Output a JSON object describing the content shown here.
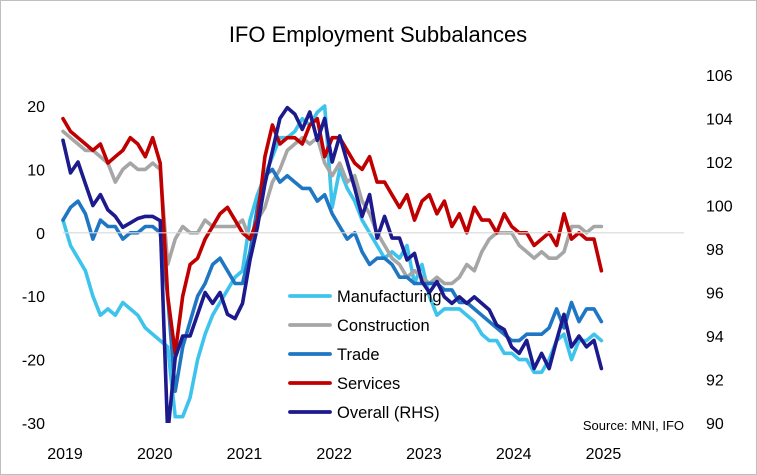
{
  "chart_data": {
    "type": "line",
    "title": "IFO Employment Subbalances",
    "source": "Source: MNI, IFO",
    "xlabel": "",
    "ylabel_left": "",
    "ylabel_right": "",
    "x_ticks": [
      "2019",
      "2020",
      "2021",
      "2022",
      "2023",
      "2024",
      "2025"
    ],
    "x_range": [
      2019.0,
      2025.92
    ],
    "ylim_left": [
      -30,
      20
    ],
    "yticks_left": [
      "-30",
      "-20",
      "-10",
      "0",
      "10",
      "20"
    ],
    "ylim_right": [
      90,
      106
    ],
    "yticks_right": [
      "90",
      "92",
      "94",
      "96",
      "98",
      "100",
      "102",
      "104",
      "106"
    ],
    "grid": false,
    "legend_position": "bottom-center",
    "series": [
      {
        "name": "Manufacturing",
        "axis": "left",
        "color": "#3ec4ec",
        "start": 2019.0,
        "values": [
          2,
          -2,
          -4,
          -6,
          -10,
          -13,
          -12,
          -13,
          -11,
          -12,
          -13,
          -15,
          -16,
          -17,
          -18,
          -29,
          -29,
          -26,
          -20,
          -16,
          -13,
          -11,
          -9,
          -7,
          -6,
          2,
          6,
          9,
          12,
          15,
          15,
          16,
          18,
          17,
          19,
          20,
          4,
          10,
          7,
          5,
          2,
          0,
          -2,
          -4,
          -3,
          -4,
          -2,
          -8,
          -5,
          -10,
          -13,
          -12,
          -12,
          -12,
          -13,
          -14,
          -16,
          -17,
          -17,
          -19,
          -19,
          -20,
          -20,
          -22,
          -22,
          -20,
          -17,
          -16,
          -20,
          -17,
          -17,
          -16,
          -17
        ]
      },
      {
        "name": "Construction",
        "axis": "left",
        "color": "#a6a6a6",
        "start": 2019.0,
        "values": [
          16,
          15,
          14,
          13,
          13,
          12,
          11,
          8,
          10,
          11,
          10,
          10,
          11,
          10,
          -5,
          -1,
          1,
          0,
          0,
          2,
          1,
          1,
          1,
          1,
          2,
          -1,
          2,
          4,
          8,
          10,
          13,
          14,
          15,
          14,
          15,
          11,
          9,
          11,
          8,
          9,
          5,
          3,
          0,
          -2,
          -4,
          -5,
          -7,
          -6,
          -7,
          -8,
          -7,
          -8,
          -8,
          -7,
          -5,
          -6,
          -3,
          -1,
          0,
          0,
          0,
          -2,
          -3,
          -4,
          -3,
          -4,
          -4,
          -3,
          1,
          1,
          0,
          1,
          1
        ]
      },
      {
        "name": "Trade",
        "axis": "left",
        "color": "#1f77c4",
        "start": 2019.0,
        "values": [
          2,
          4,
          5,
          3,
          -1,
          2,
          1,
          1,
          -1,
          0,
          0,
          1,
          1,
          0,
          -10,
          -25,
          -18,
          -14,
          -10,
          -8,
          -5,
          -4,
          -6,
          -8,
          -8,
          -3,
          4,
          9,
          10,
          8,
          9,
          8,
          7,
          7,
          5,
          6,
          3,
          1,
          -1,
          0,
          -3,
          -5,
          -4,
          -4,
          -5,
          -7,
          -7,
          -8,
          -8,
          -8,
          -8,
          -9,
          -9,
          -11,
          -11,
          -12,
          -13,
          -14,
          -15,
          -16,
          -17,
          -17,
          -16,
          -16,
          -16,
          -15,
          -12,
          -15,
          -11,
          -14,
          -12,
          -12,
          -14
        ]
      },
      {
        "name": "Services",
        "axis": "left",
        "color": "#c00000",
        "start": 2019.0,
        "values": [
          18,
          16,
          15,
          14,
          13,
          14,
          11,
          12,
          13,
          15,
          14,
          12,
          15,
          11,
          -10,
          -19,
          -10,
          -5,
          -4,
          -1,
          1,
          3,
          4,
          2,
          0,
          -1,
          2,
          12,
          17,
          14,
          15,
          15,
          14,
          17,
          18,
          12,
          15,
          15,
          13,
          11,
          10,
          12,
          8,
          8,
          6,
          4,
          6,
          2,
          5,
          6,
          3,
          5,
          1,
          3,
          0,
          4,
          2,
          2,
          0,
          3,
          1,
          0,
          0,
          -2,
          -1,
          0,
          -2,
          3,
          -1,
          0,
          -1,
          -1,
          -6
        ]
      },
      {
        "name": "Overall (RHS)",
        "axis": "right",
        "color": "#1c1a8c",
        "start": 2019.0,
        "values": [
          103,
          101.5,
          102,
          101,
          100,
          100.5,
          99.8,
          99.5,
          99,
          99.2,
          99.4,
          99.5,
          99.5,
          99.3,
          89.5,
          93,
          94,
          94,
          95,
          96,
          95.5,
          96,
          95,
          94.8,
          95.5,
          97.5,
          99,
          101,
          102.5,
          104,
          104.5,
          104.2,
          103.5,
          104.3,
          103,
          104,
          102,
          103.2,
          102,
          100.8,
          99.5,
          100.5,
          98.5,
          99.5,
          98.5,
          98.5,
          97.5,
          97.8,
          96.5,
          96,
          96.5,
          95.8,
          95.5,
          95.8,
          95.5,
          95.8,
          95.5,
          95.2,
          94.5,
          94.3,
          93.5,
          93.2,
          93.8,
          92.5,
          93.2,
          92.5,
          93.8,
          95,
          93.5,
          94,
          93.5,
          93.8,
          92.5
        ]
      }
    ]
  }
}
